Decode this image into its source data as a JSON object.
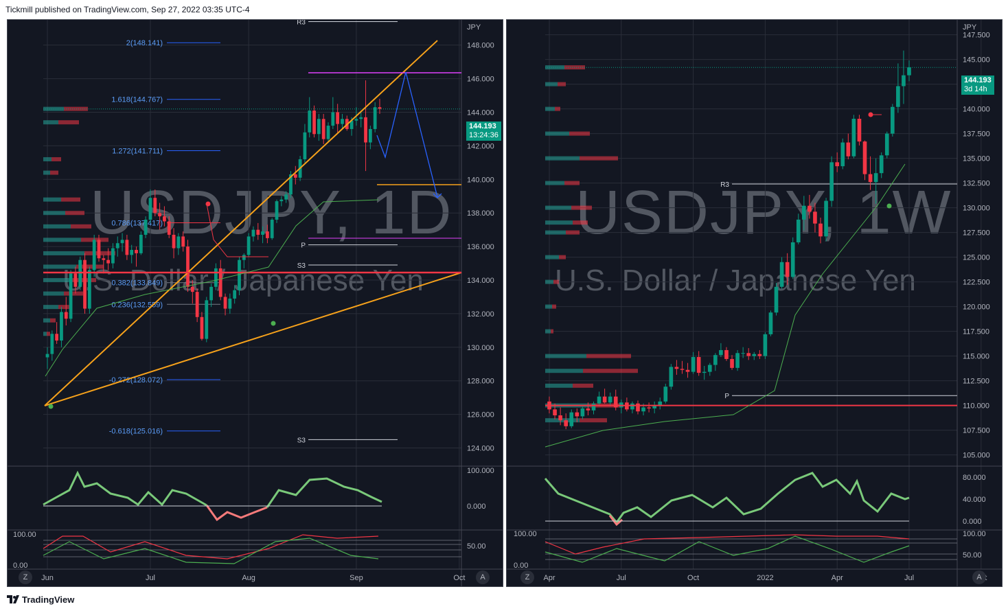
{
  "header": {
    "published": "Tickmill published on TradingView.com, Sep 27, 2022 03:35 UTC-4"
  },
  "footer": {
    "brand": "TradingView"
  },
  "colors": {
    "bg": "#131722",
    "up": "#089981",
    "up_bright": "#26a69a",
    "down": "#f23645",
    "grid": "#2a2e39",
    "axis_text": "#b2b5be",
    "orange": "#f7a21b",
    "magenta": "#e040fb",
    "blue": "#2962ff",
    "green_line": "#4caf50"
  },
  "chart_data": [
    {
      "type": "candlestick",
      "symbol_watermark": "USDJPY, 1D",
      "description_watermark": "U.S. Dollar / Japanese Yen",
      "currency": "JPY",
      "last_price": "144.193",
      "countdown": "13:24:36",
      "y_ticks": [
        "148.000",
        "146.000",
        "144.000",
        "142.000",
        "140.000",
        "138.000",
        "136.000",
        "134.000",
        "132.000",
        "130.000",
        "128.000",
        "126.000",
        "124.000"
      ],
      "ylim": [
        123.0,
        149.5
      ],
      "x_ticks": [
        {
          "label": "Jun",
          "index": 0
        },
        {
          "label": "Jul",
          "index": 22
        },
        {
          "label": "Aug",
          "index": 43
        },
        {
          "label": "Sep",
          "index": 66
        },
        {
          "label": "Oct",
          "index": 88
        }
      ],
      "fib_levels": [
        {
          "label": "2(148.141)",
          "value": 148.141
        },
        {
          "label": "1.618(144.767)",
          "value": 144.767
        },
        {
          "label": "1.272(141.711)",
          "value": 141.711
        },
        {
          "label": "0.786(137.417)",
          "value": 137.417
        },
        {
          "label": "0.382(133.849)",
          "value": 133.849
        },
        {
          "label": "0.236(132.559)",
          "value": 132.559
        },
        {
          "label": "-0.272(128.072)",
          "value": 128.072
        },
        {
          "label": "-0.618(125.016)",
          "value": 125.016
        }
      ],
      "pivots": [
        {
          "label": "R3",
          "value": 149.4
        },
        {
          "label": "P",
          "value": 136.1
        },
        {
          "label": "S3",
          "value": 134.9
        },
        {
          "label": "S3",
          "value": 124.5
        }
      ],
      "osc1_ticks": [
        "100.000",
        "0.000"
      ],
      "osc2_ticks": [
        "100.00",
        "0.00",
        "50.00"
      ],
      "buttons": [
        "Z",
        "A"
      ],
      "ohlc": [
        [
          129.4,
          130.0,
          128.7,
          129.6
        ],
        [
          129.6,
          131.0,
          129.2,
          130.8
        ],
        [
          130.8,
          131.5,
          130.2,
          130.4
        ],
        [
          130.4,
          132.4,
          130.0,
          132.1
        ],
        [
          132.1,
          133.0,
          131.3,
          131.7
        ],
        [
          131.7,
          134.6,
          131.5,
          134.4
        ],
        [
          134.4,
          134.8,
          133.2,
          133.6
        ],
        [
          133.6,
          135.4,
          133.4,
          135.2
        ],
        [
          135.2,
          135.6,
          132.0,
          132.3
        ],
        [
          132.3,
          134.8,
          132.0,
          134.6
        ],
        [
          134.6,
          136.7,
          134.2,
          136.4
        ],
        [
          136.4,
          136.7,
          135.1,
          135.3
        ],
        [
          135.3,
          135.5,
          134.4,
          135.2
        ],
        [
          135.2,
          135.9,
          134.6,
          135.0
        ],
        [
          135.0,
          136.2,
          134.7,
          135.9
        ],
        [
          135.9,
          136.6,
          135.4,
          136.2
        ],
        [
          136.2,
          136.8,
          135.7,
          136.4
        ],
        [
          136.4,
          136.7,
          135.2,
          135.5
        ],
        [
          135.5,
          136.1,
          135.0,
          135.8
        ],
        [
          135.8,
          136.0,
          134.8,
          135.6
        ],
        [
          135.6,
          136.9,
          135.5,
          136.7
        ],
        [
          136.7,
          137.8,
          136.5,
          137.6
        ],
        [
          137.6,
          139.4,
          137.4,
          138.9
        ],
        [
          138.9,
          139.4,
          137.8,
          138.0
        ],
        [
          138.0,
          138.6,
          137.0,
          137.8
        ],
        [
          137.8,
          138.4,
          137.2,
          137.5
        ],
        [
          137.5,
          137.8,
          136.5,
          136.7
        ],
        [
          136.7,
          137.1,
          135.3,
          135.9
        ],
        [
          135.9,
          136.8,
          135.5,
          136.6
        ],
        [
          136.6,
          136.9,
          135.7,
          136.0
        ],
        [
          136.0,
          136.4,
          133.3,
          133.6
        ],
        [
          133.6,
          134.0,
          132.6,
          133.3
        ],
        [
          133.3,
          133.5,
          131.5,
          131.8
        ],
        [
          131.8,
          132.1,
          130.4,
          130.5
        ],
        [
          130.5,
          133.0,
          130.3,
          132.8
        ],
        [
          132.8,
          133.8,
          132.4,
          133.6
        ],
        [
          133.6,
          135.0,
          133.4,
          134.7
        ],
        [
          134.7,
          135.2,
          132.8,
          133.0
        ],
        [
          133.0,
          133.2,
          131.9,
          132.3
        ],
        [
          132.3,
          133.2,
          132.0,
          132.9
        ],
        [
          132.9,
          133.7,
          132.6,
          133.4
        ],
        [
          133.4,
          135.4,
          133.1,
          135.2
        ],
        [
          135.2,
          135.6,
          134.7,
          135.5
        ],
        [
          135.5,
          136.8,
          135.4,
          136.6
        ],
        [
          136.6,
          137.2,
          136.3,
          137.0
        ],
        [
          137.0,
          137.4,
          136.4,
          136.7
        ],
        [
          136.7,
          137.2,
          136.2,
          136.9
        ],
        [
          136.9,
          137.3,
          136.2,
          136.5
        ],
        [
          136.5,
          137.7,
          136.4,
          137.6
        ],
        [
          137.6,
          138.8,
          137.4,
          138.7
        ],
        [
          138.7,
          139.0,
          138.4,
          138.8
        ],
        [
          138.8,
          139.3,
          138.6,
          139.1
        ],
        [
          139.1,
          140.5,
          138.9,
          140.3
        ],
        [
          140.3,
          140.8,
          139.7,
          140.1
        ],
        [
          140.1,
          141.4,
          139.9,
          141.2
        ],
        [
          141.2,
          143.3,
          141.0,
          142.8
        ],
        [
          142.8,
          144.9,
          142.5,
          144.1
        ],
        [
          144.1,
          144.4,
          142.5,
          142.7
        ],
        [
          142.7,
          143.9,
          142.3,
          143.6
        ],
        [
          143.6,
          143.9,
          142.1,
          142.4
        ],
        [
          142.4,
          143.4,
          142.2,
          143.2
        ],
        [
          143.2,
          144.9,
          143.0,
          144.0
        ],
        [
          144.0,
          144.5,
          142.8,
          143.3
        ],
        [
          143.3,
          143.9,
          143.0,
          143.6
        ],
        [
          143.6,
          143.8,
          142.9,
          143.0
        ],
        [
          143.0,
          143.7,
          142.6,
          143.5
        ],
        [
          143.5,
          144.3,
          143.2,
          143.6
        ],
        [
          143.6,
          144.0,
          143.1,
          143.7
        ],
        [
          143.7,
          145.9,
          140.5,
          142.2
        ],
        [
          142.2,
          143.2,
          141.8,
          143.0
        ],
        [
          143.0,
          144.6,
          142.8,
          144.3
        ],
        [
          144.3,
          144.8,
          143.9,
          144.2
        ]
      ],
      "volume_profile": [
        {
          "price": 144.2,
          "up": 30,
          "down": 35
        },
        {
          "price": 143.4,
          "up": 22,
          "down": 30
        },
        {
          "price": 141.2,
          "up": 12,
          "down": 14
        },
        {
          "price": 140.4,
          "up": 10,
          "down": 12
        },
        {
          "price": 138.8,
          "up": 26,
          "down": 28
        },
        {
          "price": 138.0,
          "up": 32,
          "down": 28
        },
        {
          "price": 137.2,
          "up": 40,
          "down": 30
        },
        {
          "price": 136.4,
          "up": 55,
          "down": 40
        },
        {
          "price": 135.6,
          "up": 60,
          "down": 45
        },
        {
          "price": 134.8,
          "up": 48,
          "down": 40
        },
        {
          "price": 134.0,
          "up": 42,
          "down": 35
        },
        {
          "price": 133.2,
          "up": 30,
          "down": 28
        },
        {
          "price": 132.4,
          "up": 22,
          "down": 20
        },
        {
          "price": 131.6,
          "up": 10,
          "down": 8
        },
        {
          "price": 130.8,
          "up": 5,
          "down": 5
        }
      ]
    },
    {
      "type": "candlestick",
      "symbol_watermark": "USDJPY, 1W",
      "description_watermark": "U.S. Dollar / Japanese Yen",
      "currency": "JPY",
      "last_price": "144.193",
      "countdown": "3d 14h",
      "y_ticks": [
        "147.500",
        "145.000",
        "142.500",
        "140.000",
        "137.500",
        "135.000",
        "132.500",
        "130.000",
        "127.500",
        "125.000",
        "122.500",
        "120.000",
        "117.500",
        "115.000",
        "112.500",
        "110.000",
        "107.500",
        "105.000"
      ],
      "ylim": [
        104.0,
        149.0
      ],
      "x_ticks": [
        {
          "label": "Apr",
          "index": 0
        },
        {
          "label": "Jul",
          "index": 13
        },
        {
          "label": "Oct",
          "index": 26
        },
        {
          "label": "2022",
          "index": 39
        },
        {
          "label": "Apr",
          "index": 52
        },
        {
          "label": "Jul",
          "index": 65
        },
        {
          "label": "Oct",
          "index": 78
        }
      ],
      "pivots": [
        {
          "label": "R3",
          "value": 132.4
        },
        {
          "label": "P",
          "value": 111.0
        }
      ],
      "osc1_ticks": [
        "80.000",
        "40.000",
        "0.000"
      ],
      "osc2_ticks": [
        "100.00",
        "0.00",
        "100.00",
        "50.00"
      ],
      "buttons": [
        "Z",
        "A"
      ],
      "ohlc": [
        [
          110.4,
          110.9,
          109.2,
          109.6
        ],
        [
          109.6,
          110.2,
          108.6,
          109.0
        ],
        [
          109.0,
          109.8,
          108.0,
          108.5
        ],
        [
          108.5,
          109.2,
          107.6,
          107.9
        ],
        [
          107.9,
          109.6,
          107.7,
          109.3
        ],
        [
          109.3,
          109.7,
          108.3,
          108.9
        ],
        [
          108.9,
          109.9,
          108.6,
          109.7
        ],
        [
          109.7,
          110.3,
          109.0,
          109.5
        ],
        [
          109.5,
          110.4,
          109.1,
          110.2
        ],
        [
          110.2,
          111.4,
          109.9,
          110.9
        ],
        [
          110.9,
          111.7,
          110.2,
          110.3
        ],
        [
          110.3,
          111.3,
          109.9,
          110.9
        ],
        [
          110.9,
          111.6,
          109.5,
          109.8
        ],
        [
          109.8,
          110.6,
          109.2,
          110.3
        ],
        [
          110.3,
          110.8,
          109.4,
          109.6
        ],
        [
          109.6,
          110.4,
          109.2,
          110.2
        ],
        [
          110.2,
          110.5,
          109.1,
          109.4
        ],
        [
          109.4,
          110.2,
          109.0,
          109.8
        ],
        [
          109.8,
          110.3,
          109.3,
          109.7
        ],
        [
          109.7,
          110.4,
          109.2,
          110.0
        ],
        [
          110.0,
          110.8,
          109.6,
          110.4
        ],
        [
          110.4,
          112.2,
          110.2,
          111.9
        ],
        [
          111.9,
          114.2,
          111.6,
          113.9
        ],
        [
          113.9,
          114.6,
          113.1,
          113.7
        ],
        [
          113.7,
          114.5,
          113.2,
          113.6
        ],
        [
          113.6,
          114.3,
          112.8,
          113.4
        ],
        [
          113.4,
          115.4,
          113.2,
          114.9
        ],
        [
          114.9,
          115.5,
          113.0,
          113.3
        ],
        [
          113.3,
          114.0,
          112.6,
          113.4
        ],
        [
          113.4,
          114.3,
          113.0,
          114.1
        ],
        [
          114.1,
          115.3,
          113.5,
          115.1
        ],
        [
          115.1,
          116.3,
          114.9,
          115.6
        ],
        [
          115.6,
          115.9,
          114.5,
          114.7
        ],
        [
          114.7,
          115.1,
          113.6,
          113.8
        ],
        [
          113.8,
          115.6,
          113.5,
          115.3
        ],
        [
          115.3,
          115.9,
          114.8,
          115.3
        ],
        [
          115.3,
          115.8,
          114.6,
          115.0
        ],
        [
          115.0,
          115.4,
          114.6,
          115.2
        ],
        [
          115.2,
          115.6,
          114.7,
          115.0
        ],
        [
          115.0,
          117.4,
          114.7,
          117.2
        ],
        [
          117.2,
          119.6,
          117.0,
          119.4
        ],
        [
          119.4,
          122.4,
          119.1,
          122.0
        ],
        [
          122.0,
          125.0,
          121.8,
          124.5
        ],
        [
          124.5,
          125.4,
          122.2,
          123.0
        ],
        [
          123.0,
          127.0,
          122.8,
          126.5
        ],
        [
          126.5,
          129.4,
          126.3,
          128.8
        ],
        [
          128.8,
          131.2,
          127.7,
          130.2
        ],
        [
          130.2,
          131.3,
          128.9,
          129.6
        ],
        [
          129.6,
          130.5,
          127.5,
          128.4
        ],
        [
          128.4,
          129.0,
          126.4,
          127.1
        ],
        [
          127.1,
          131.0,
          126.6,
          130.7
        ],
        [
          130.7,
          135.2,
          130.1,
          134.6
        ],
        [
          134.6,
          135.6,
          133.6,
          134.2
        ],
        [
          134.2,
          137.0,
          133.9,
          136.6
        ],
        [
          136.6,
          137.5,
          134.9,
          135.2
        ],
        [
          135.2,
          139.4,
          135.0,
          139.0
        ],
        [
          139.0,
          139.4,
          136.3,
          136.7
        ],
        [
          136.7,
          136.8,
          132.8,
          133.4
        ],
        [
          133.4,
          135.2,
          131.8,
          132.6
        ],
        [
          132.6,
          135.0,
          130.4,
          133.5
        ],
        [
          133.5,
          135.6,
          133.0,
          135.3
        ],
        [
          135.3,
          137.7,
          135.0,
          137.5
        ],
        [
          137.5,
          140.5,
          137.2,
          140.2
        ],
        [
          140.2,
          144.6,
          139.6,
          142.3
        ],
        [
          142.3,
          145.9,
          140.5,
          143.4
        ],
        [
          143.4,
          144.9,
          142.8,
          144.2
        ]
      ],
      "volume_profile": [
        {
          "price": 144.2,
          "up": 28,
          "down": 30
        },
        {
          "price": 142.5,
          "up": 18,
          "down": 12
        },
        {
          "price": 140.0,
          "up": 14,
          "down": 8
        },
        {
          "price": 137.5,
          "up": 35,
          "down": 30
        },
        {
          "price": 135.0,
          "up": 50,
          "down": 56
        },
        {
          "price": 132.5,
          "up": 28,
          "down": 22
        },
        {
          "price": 130.0,
          "up": 38,
          "down": 30
        },
        {
          "price": 128.5,
          "up": 40,
          "down": 22
        },
        {
          "price": 127.5,
          "up": 30,
          "down": 20
        },
        {
          "price": 125.0,
          "up": 20,
          "down": 10
        },
        {
          "price": 122.5,
          "up": 12,
          "down": 8
        },
        {
          "price": 120.0,
          "up": 10,
          "down": 6
        },
        {
          "price": 117.5,
          "up": 8,
          "down": 4
        },
        {
          "price": 115.0,
          "up": 60,
          "down": 65
        },
        {
          "price": 113.5,
          "up": 55,
          "down": 80
        },
        {
          "price": 112.0,
          "up": 40,
          "down": 30
        },
        {
          "price": 110.0,
          "up": 65,
          "down": 45
        },
        {
          "price": 108.5,
          "up": 50,
          "down": 40
        }
      ]
    }
  ]
}
